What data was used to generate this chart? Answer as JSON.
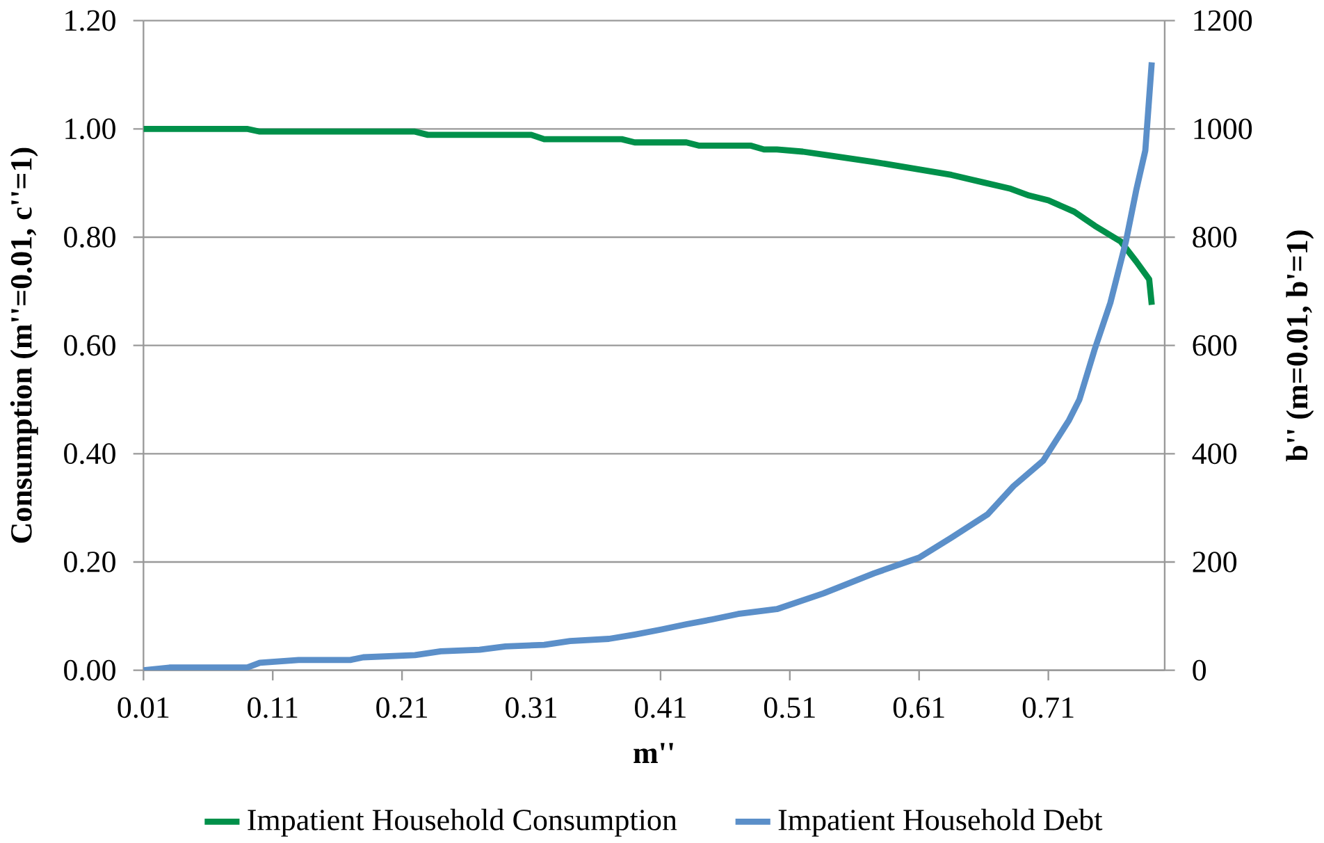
{
  "chart_data": {
    "type": "line",
    "xlabel": "m''",
    "ylabel": "Consumption (m''=0.01, c''=1)",
    "y2label": "b'' (m=0.01, b'=1)",
    "xlim": [
      0.01,
      0.8
    ],
    "xticks": [
      0.01,
      0.11,
      0.21,
      0.31,
      0.41,
      0.51,
      0.61,
      0.71
    ],
    "ylim": [
      0,
      1.2
    ],
    "yticks": [
      {
        "value": 0,
        "label": "0.00"
      },
      {
        "value": 0.2,
        "label": "0.20"
      },
      {
        "value": 0.4,
        "label": "0.40"
      },
      {
        "value": 0.6,
        "label": "0.60"
      },
      {
        "value": 0.8,
        "label": "0.80"
      },
      {
        "value": 1.0,
        "label": "1.00"
      },
      {
        "value": 1.2,
        "label": "1.20"
      }
    ],
    "y2lim": [
      0,
      1200
    ],
    "y2ticks": [
      0,
      200,
      400,
      600,
      800,
      1000,
      1200
    ],
    "grid": "y",
    "legend": "bottom",
    "series": [
      {
        "name": "Impatient Household Consumption",
        "color": "#00904a",
        "axis": "y",
        "x": [
          0.01,
          0.09,
          0.1,
          0.22,
          0.23,
          0.31,
          0.32,
          0.38,
          0.39,
          0.43,
          0.44,
          0.48,
          0.49,
          0.5,
          0.52,
          0.54,
          0.575,
          0.61,
          0.635,
          0.66,
          0.68,
          0.695,
          0.71,
          0.73,
          0.746,
          0.766,
          0.778,
          0.788,
          0.79
        ],
        "values": [
          1.0,
          1.0,
          0.995,
          0.995,
          0.989,
          0.989,
          0.981,
          0.981,
          0.975,
          0.975,
          0.969,
          0.969,
          0.962,
          0.962,
          0.958,
          0.951,
          0.939,
          0.925,
          0.915,
          0.901,
          0.89,
          0.877,
          0.868,
          0.847,
          0.821,
          0.792,
          0.755,
          0.722,
          0.675
        ]
      },
      {
        "name": "Impatient Household Debt",
        "color": "#5b8fc9",
        "axis": "y2",
        "x": [
          0.01,
          0.03,
          0.09,
          0.1,
          0.13,
          0.17,
          0.18,
          0.22,
          0.24,
          0.27,
          0.29,
          0.32,
          0.34,
          0.37,
          0.39,
          0.41,
          0.43,
          0.45,
          0.47,
          0.5,
          0.536,
          0.575,
          0.61,
          0.635,
          0.663,
          0.683,
          0.706,
          0.726,
          0.734,
          0.746,
          0.758,
          0.77,
          0.778,
          0.785,
          0.79
        ],
        "values": [
          0,
          5,
          5,
          14,
          19,
          19,
          24,
          28,
          35,
          38,
          44,
          47,
          54,
          58,
          66,
          75,
          85,
          94,
          104,
          113,
          142,
          179,
          208,
          245,
          288,
          340,
          387,
          462,
          500,
          594,
          679,
          792,
          887,
          960,
          1123
        ]
      }
    ]
  }
}
